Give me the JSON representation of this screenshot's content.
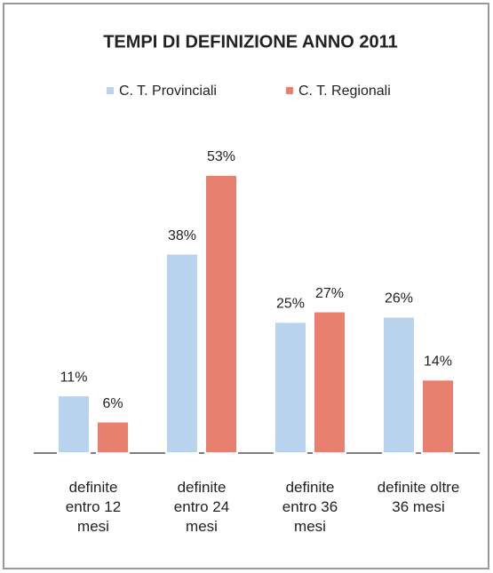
{
  "chart_data": {
    "type": "bar",
    "title": "TEMPI DI DEFINIZIONE ANNO 2011",
    "categories": [
      "definite entro 12 mesi",
      "definite entro 24 mesi",
      "definite entro 36 mesi",
      "definite oltre 36 mesi"
    ],
    "series": [
      {
        "name": "C. T. Provinciali",
        "color": "#b9d3ee",
        "values": [
          11,
          38,
          25,
          26
        ],
        "value_labels": [
          "11%",
          "38%",
          "25%",
          "26%"
        ]
      },
      {
        "name": "C. T. Regionali",
        "color": "#e8806f",
        "values": [
          6,
          53,
          27,
          14
        ],
        "value_labels": [
          "6%",
          "53%",
          "27%",
          "14%"
        ]
      }
    ],
    "legend": "top"
  }
}
